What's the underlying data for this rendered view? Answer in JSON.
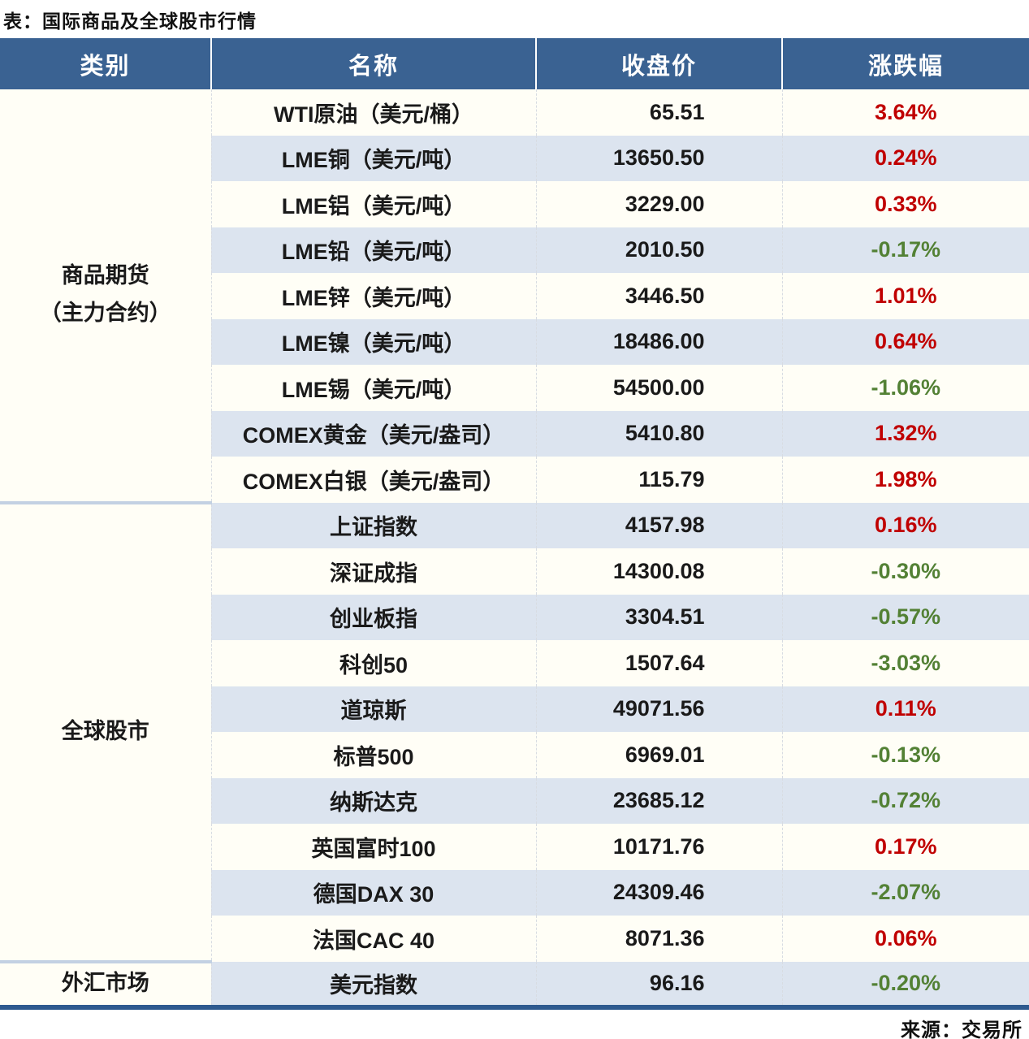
{
  "title": "表：国际商品及全球股市行情",
  "source": "来源：交易所",
  "colors": {
    "header_bg": "#3A6292",
    "header_text": "#FFFFFF",
    "stripe_blue": "#DCE4EF",
    "row_cream": "#FFFEF6",
    "positive": "#C00000",
    "negative": "#538135",
    "bottom_border": "#2E5A8F",
    "divider": "#C3D1E3"
  },
  "table": {
    "headers": [
      "类别",
      "名称",
      "收盘价",
      "涨跌幅"
    ],
    "sections": [
      {
        "category_lines": [
          "商品期货",
          "（主力合约）"
        ],
        "rows": [
          {
            "name": "WTI原油（美元/桶）",
            "close": "65.51",
            "change": "3.64%"
          },
          {
            "name": "LME铜（美元/吨）",
            "close": "13650.50",
            "change": "0.24%"
          },
          {
            "name": "LME铝（美元/吨）",
            "close": "3229.00",
            "change": "0.33%"
          },
          {
            "name": "LME铅（美元/吨）",
            "close": "2010.50",
            "change": "-0.17%"
          },
          {
            "name": "LME锌（美元/吨）",
            "close": "3446.50",
            "change": "1.01%"
          },
          {
            "name": "LME镍（美元/吨）",
            "close": "18486.00",
            "change": "0.64%"
          },
          {
            "name": "LME锡（美元/吨）",
            "close": "54500.00",
            "change": "-1.06%"
          },
          {
            "name": "COMEX黄金（美元/盎司）",
            "close": "5410.80",
            "change": "1.32%"
          },
          {
            "name": "COMEX白银（美元/盎司）",
            "close": "115.79",
            "change": "1.98%"
          }
        ]
      },
      {
        "category_lines": [
          "全球股市"
        ],
        "rows": [
          {
            "name": "上证指数",
            "close": "4157.98",
            "change": "0.16%"
          },
          {
            "name": "深证成指",
            "close": "14300.08",
            "change": "-0.30%"
          },
          {
            "name": "创业板指",
            "close": "3304.51",
            "change": "-0.57%"
          },
          {
            "name": "科创50",
            "close": "1507.64",
            "change": "-3.03%"
          },
          {
            "name": "道琼斯",
            "close": "49071.56",
            "change": "0.11%"
          },
          {
            "name": "标普500",
            "close": "6969.01",
            "change": "-0.13%"
          },
          {
            "name": "纳斯达克",
            "close": "23685.12",
            "change": "-0.72%"
          },
          {
            "name": "英国富时100",
            "close": "10171.76",
            "change": "0.17%"
          },
          {
            "name": "德国DAX 30",
            "close": "24309.46",
            "change": "-2.07%"
          },
          {
            "name": "法国CAC 40",
            "close": "8071.36",
            "change": "0.06%"
          }
        ]
      },
      {
        "category_lines": [
          "外汇市场"
        ],
        "rows": [
          {
            "name": "美元指数",
            "close": "96.16",
            "change": "-0.20%"
          }
        ]
      }
    ]
  }
}
